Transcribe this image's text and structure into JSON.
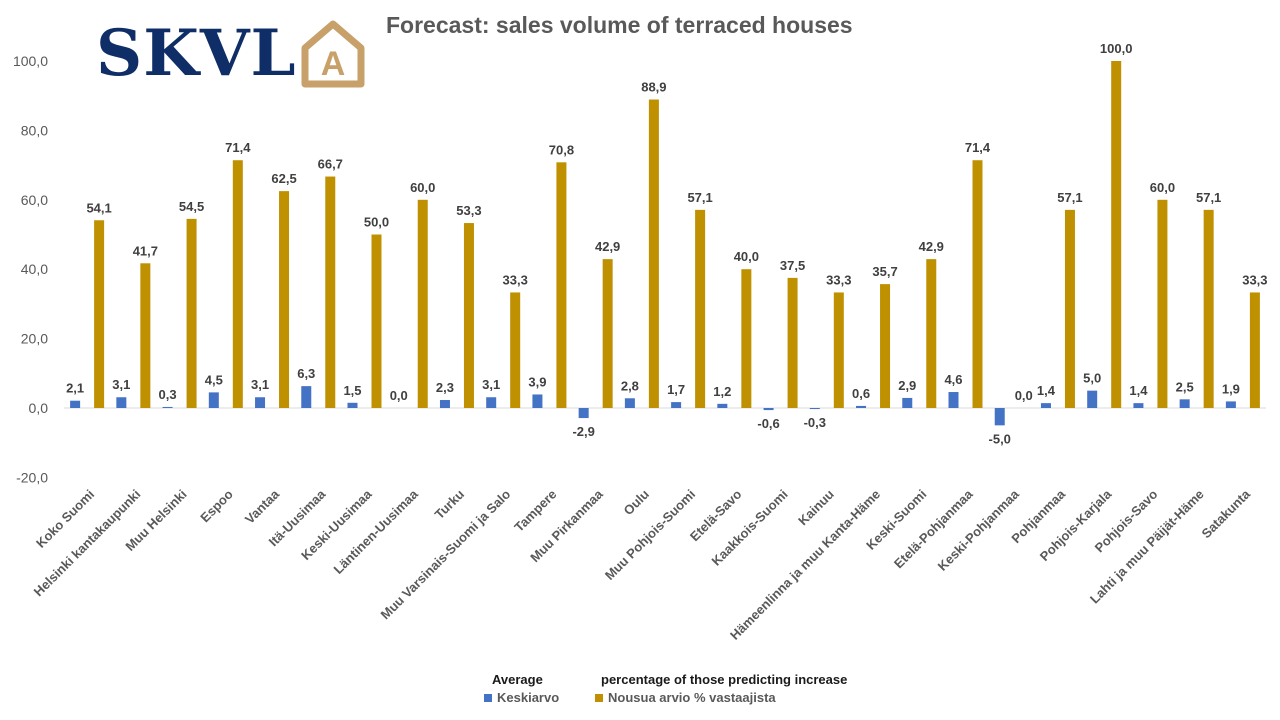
{
  "logo": {
    "text": "SKVL",
    "mark": "A"
  },
  "chart_data": {
    "type": "bar",
    "title": "Forecast: sales volume of terraced houses",
    "ylim": [
      -20,
      100
    ],
    "yticks": [
      "100,0",
      "80,0",
      "60,0",
      "40,0",
      "20,0",
      "0,0",
      "-20,0"
    ],
    "categories": [
      "Koko Suomi",
      "Helsinki kantakaupunki",
      "Muu Helsinki",
      "Espoo",
      "Vantaa",
      "Itä-Uusimaa",
      "Keski-Uusimaa",
      "Läntinen-Uusimaa",
      "Turku",
      "Muu Varsinais-Suomi ja Salo",
      "Tampere",
      "Muu Pirkanmaa",
      "Oulu",
      "Muu Pohjois-Suomi",
      "Etelä-Savo",
      "Kaakkois-Suomi",
      "Kainuu",
      "Hämeenlinna ja muu Kanta-Häme",
      "Keski-Suomi",
      "Etelä-Pohjanmaa",
      "Keski-Pohjanmaa",
      "Pohjanmaa",
      "Pohjois-Karjala",
      "Pohjois-Savo",
      "Lahti ja muu Päijät-Häme",
      "Satakunta"
    ],
    "series": [
      {
        "name": "Keskiarvo",
        "color": "#4472c4",
        "values": [
          2.1,
          3.1,
          0.3,
          4.5,
          3.1,
          6.3,
          1.5,
          0.0,
          2.3,
          3.1,
          3.9,
          -2.9,
          2.8,
          1.7,
          1.2,
          -0.6,
          -0.3,
          0.6,
          2.9,
          4.6,
          -5.0,
          1.4,
          5.0,
          1.4,
          2.5,
          1.9
        ],
        "labels": [
          "2,1",
          "3,1",
          "0,3",
          "4,5",
          "3,1",
          "6,3",
          "1,5",
          "0,0",
          "2,3",
          "3,1",
          "3,9",
          "-2,9",
          "2,8",
          "1,7",
          "1,2",
          "-0,6",
          "-0,3",
          "0,6",
          "2,9",
          "4,6",
          "-5,0",
          "1,4",
          "5,0",
          "1,4",
          "2,5",
          "1,9"
        ]
      },
      {
        "name": "Nousua arvio % vastaajista",
        "color": "#bf9000",
        "values": [
          54.1,
          41.7,
          54.5,
          71.4,
          62.5,
          66.7,
          50.0,
          60.0,
          53.3,
          33.3,
          70.8,
          42.9,
          88.9,
          57.1,
          40.0,
          37.5,
          33.3,
          35.7,
          42.9,
          71.4,
          0.0,
          57.1,
          100.0,
          60.0,
          57.1,
          33.3
        ],
        "labels": [
          "54,1",
          "41,7",
          "54,5",
          "71,4",
          "62,5",
          "66,7",
          "50,0",
          "60,0",
          "53,3",
          "33,3",
          "70,8",
          "42,9",
          "88,9",
          "57,1",
          "40,0",
          "37,5",
          "33,3",
          "35,7",
          "42,9",
          "71,4",
          "0,0",
          "57,1",
          "100,0",
          "60,0",
          "57,1",
          "33,3"
        ]
      }
    ],
    "grid": false,
    "legend": "bottom-center"
  },
  "annotations": {
    "average": "Average",
    "percentage": "percentage of those predicting increase"
  }
}
